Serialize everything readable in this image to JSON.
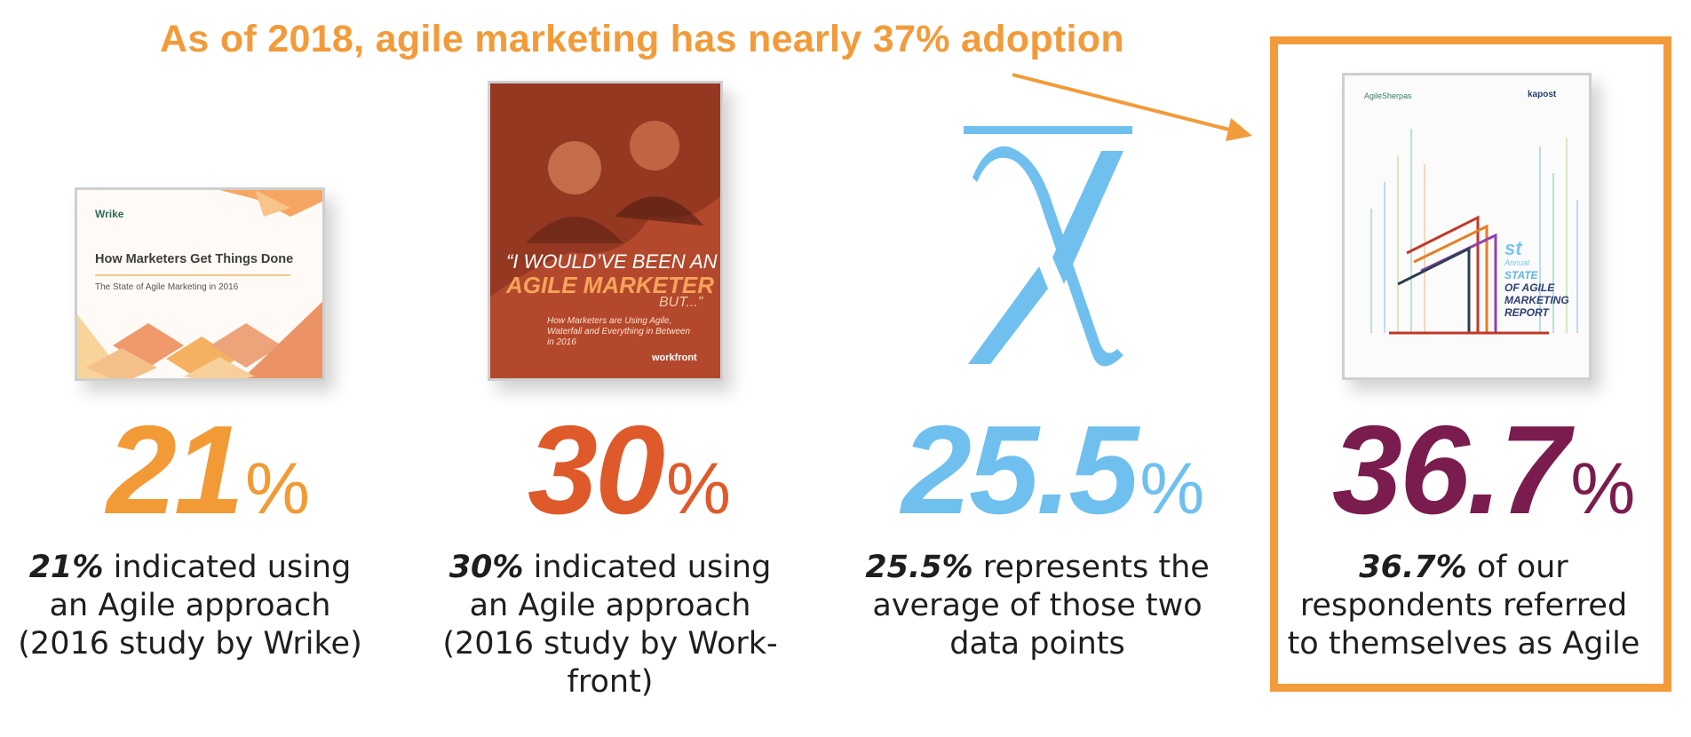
{
  "headline": "As of 2018, agile marketing has nearly 37% adoption",
  "colors": {
    "orange": "#f29b3a",
    "red": "#de5a2b",
    "blue": "#6fc0ef",
    "plum": "#7a1d4e"
  },
  "covers": {
    "wrike": {
      "brand": "Wrike",
      "title": "How Marketers Get Things Done",
      "subtitle": "The State of Agile Marketing in 2016"
    },
    "workfront": {
      "quote_line1": "“I WOULD’VE BEEN AN",
      "quote_line2": "AGILE MARKETER",
      "quote_line3": "BUT...”",
      "subtitle": "How Marketers are Using Agile, Waterfall and Everything in Between in 2016",
      "brand": "workfront"
    },
    "agilesherpas": {
      "brand_left": "AgileSherpas",
      "brand_right": "kapost",
      "st": "st",
      "annual": "Annual",
      "line1": "STATE",
      "line2": "OF AGILE",
      "line3": "MARKETING",
      "line4": "REPORT"
    }
  },
  "stats": [
    {
      "value": "21",
      "symbol": "%",
      "bold": "21%",
      "text": " indicated using an Agile approach (2016 study by Wrike)"
    },
    {
      "value": "30",
      "symbol": "%",
      "bold": "30%",
      "text": " indicated using an Agile approach (2016 study by Work-front)"
    },
    {
      "value": "25.5",
      "symbol": "%",
      "bold": "25.5%",
      "text": " represents the average of those two data points"
    },
    {
      "value": "36.7",
      "symbol": "%",
      "bold": "36.7%",
      "text": " of our respondents referred to themselves as Agile"
    }
  ]
}
